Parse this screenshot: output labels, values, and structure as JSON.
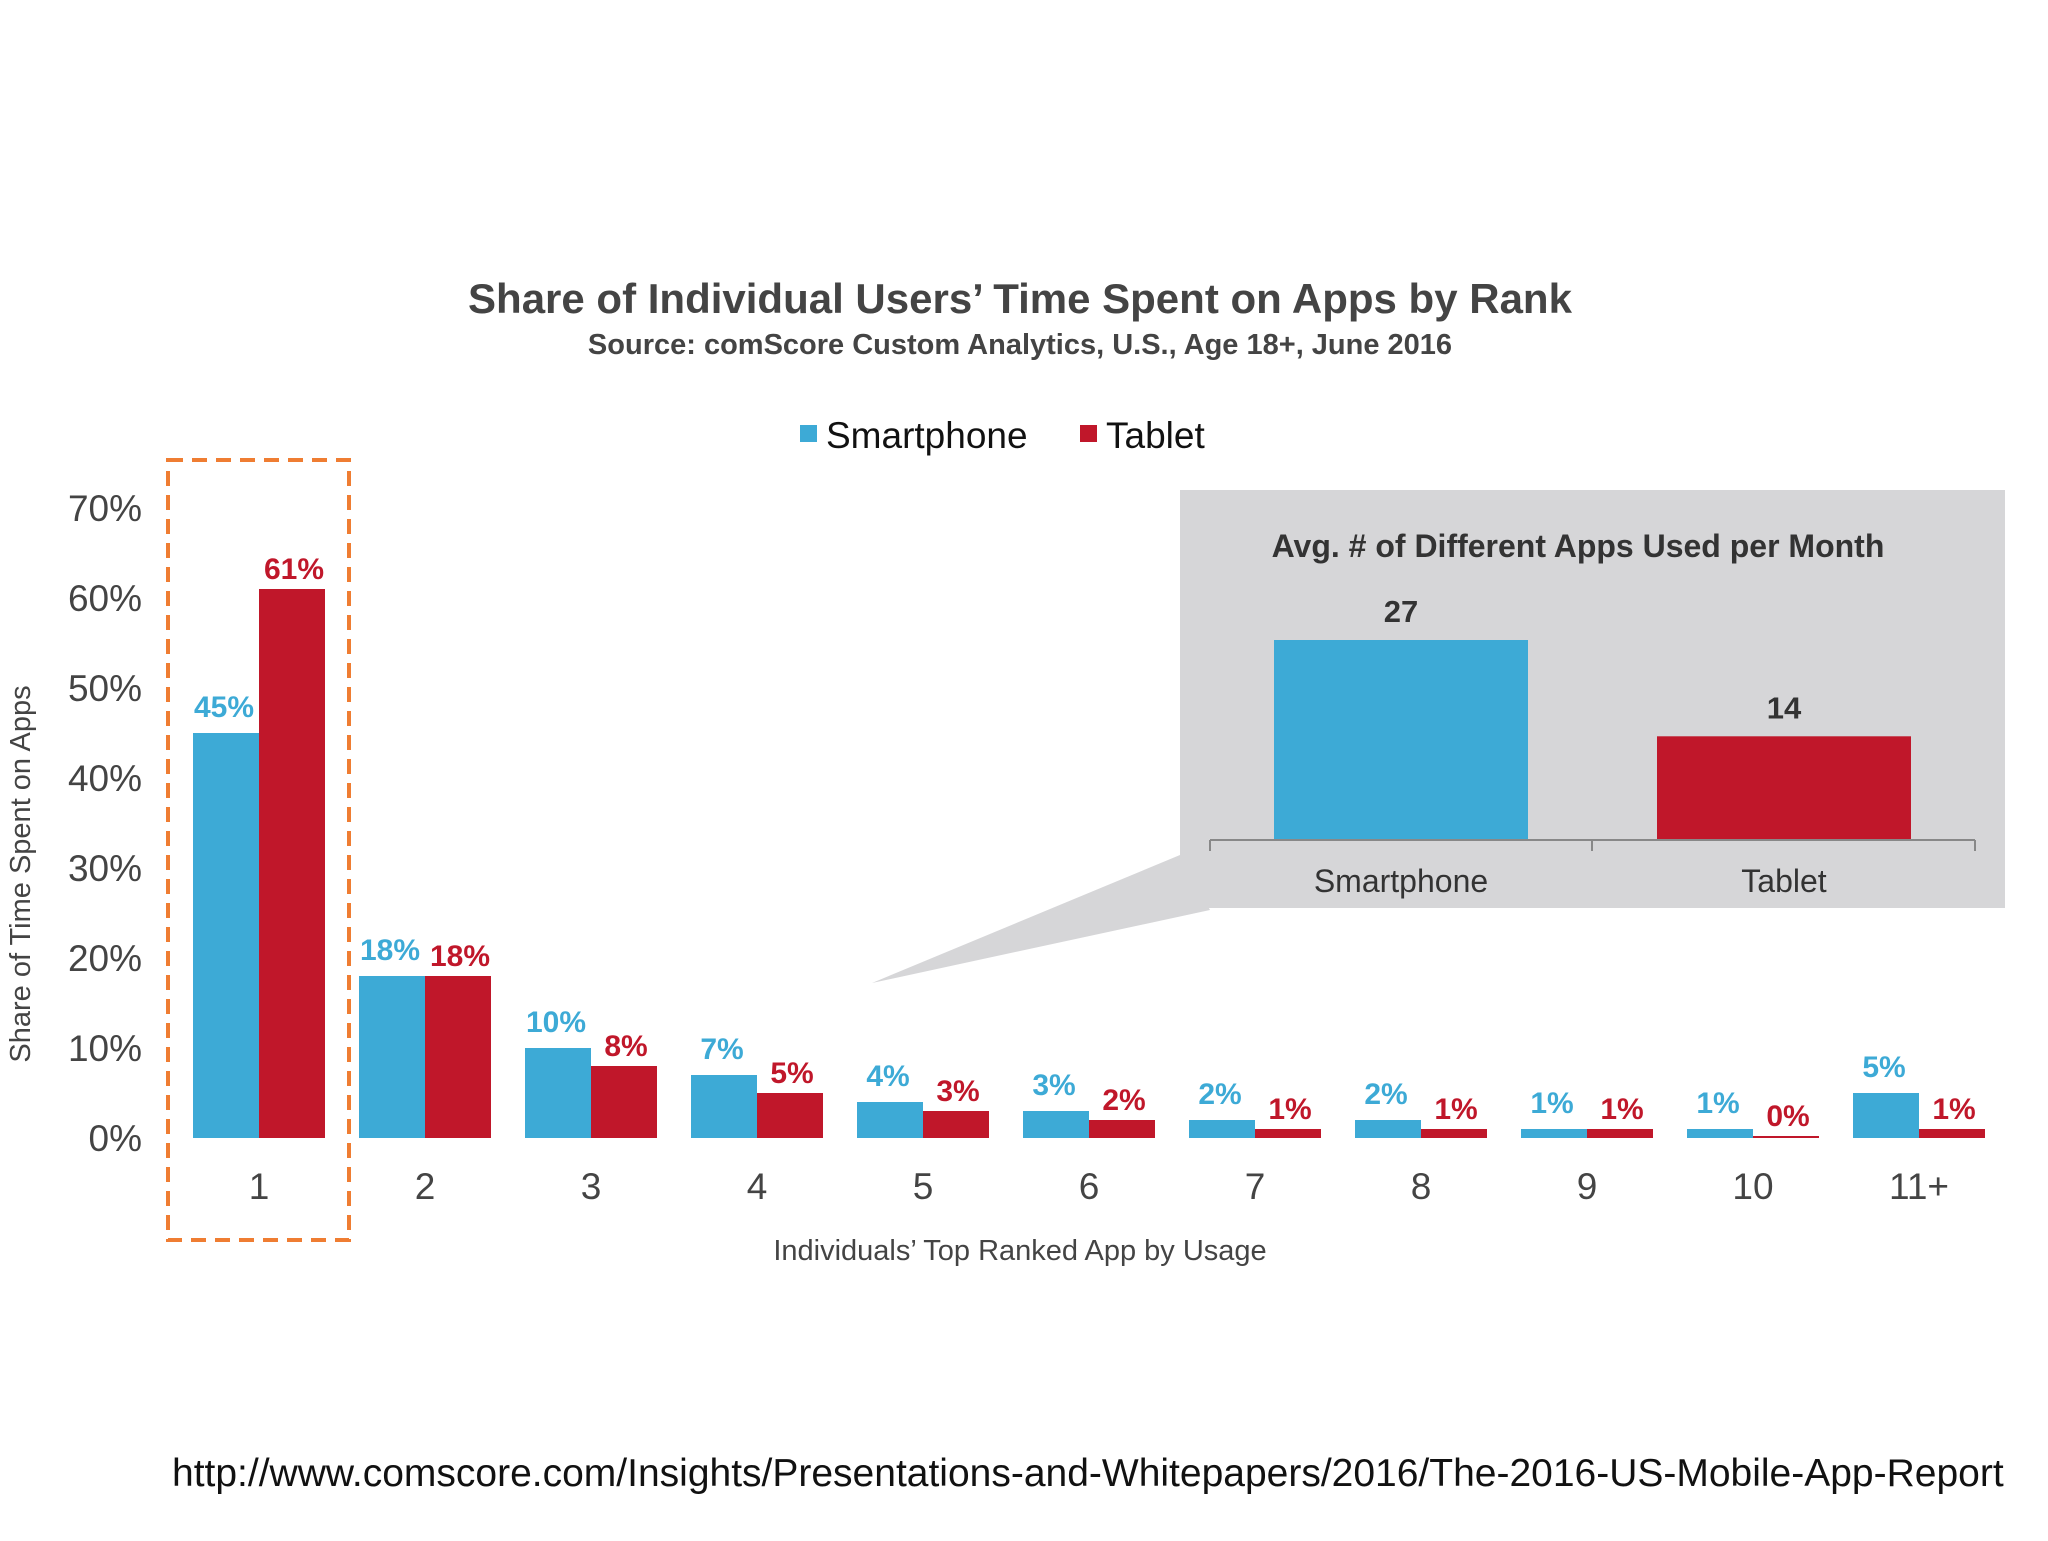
{
  "colors": {
    "smartphone": "#3daad6",
    "tablet": "#c0172a",
    "highlight_border": "#ef7d32",
    "inset_background": "#d6d6d8",
    "text": "#444444"
  },
  "chart_data": [
    {
      "type": "bar",
      "title": "Share of Individual Users’ Time Spent on Apps by Rank",
      "subtitle": "Source: comScore Custom Analytics, U.S., Age 18+, June 2016",
      "xlabel": "Individuals’ Top Ranked App by Usage",
      "ylabel": "Share of Time Spent on Apps",
      "ylim": [
        0,
        70
      ],
      "yticks": [
        "0%",
        "10%",
        "20%",
        "30%",
        "40%",
        "50%",
        "60%",
        "70%"
      ],
      "grid": false,
      "legend": "top-center",
      "categories": [
        "1",
        "2",
        "3",
        "4",
        "5",
        "6",
        "7",
        "8",
        "9",
        "10",
        "11+"
      ],
      "highlighted_category": "1",
      "series": [
        {
          "name": "Smartphone",
          "values": [
            45,
            18,
            10,
            7,
            4,
            3,
            2,
            2,
            1,
            1,
            5
          ],
          "labels": [
            "45%",
            "18%",
            "10%",
            "7%",
            "4%",
            "3%",
            "2%",
            "2%",
            "1%",
            "1%",
            "5%"
          ]
        },
        {
          "name": "Tablet",
          "values": [
            61,
            18,
            8,
            5,
            3,
            2,
            1,
            1,
            1,
            0,
            1
          ],
          "labels": [
            "61%",
            "18%",
            "8%",
            "5%",
            "3%",
            "2%",
            "1%",
            "1%",
            "1%",
            "0%",
            "1%"
          ]
        }
      ]
    },
    {
      "type": "bar",
      "title": "Avg. # of Different Apps Used per Month",
      "categories": [
        "Smartphone",
        "Tablet"
      ],
      "values": [
        27,
        14
      ],
      "labels": [
        "27",
        "14"
      ]
    }
  ],
  "source_url": "http://www.comscore.com/Insights/Presentations-and-Whitepapers/2016/The-2016-US-Mobile-App-Report"
}
